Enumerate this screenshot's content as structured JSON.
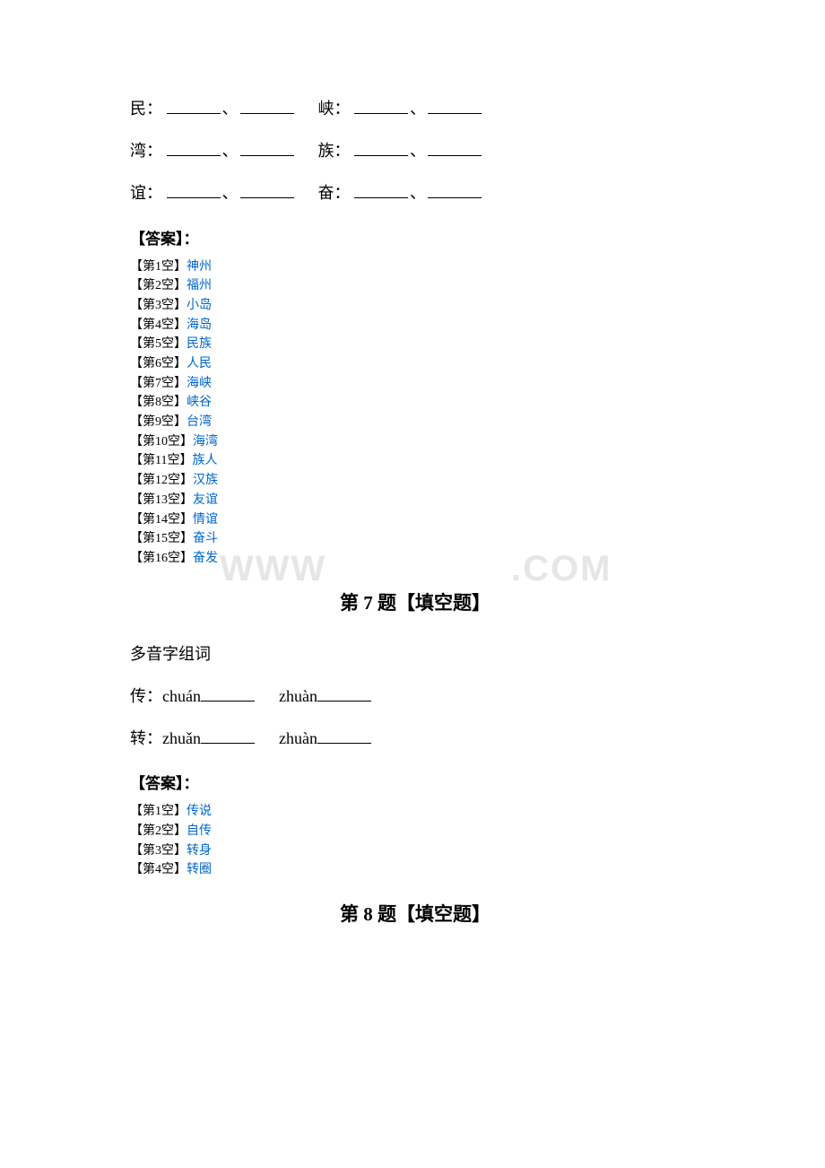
{
  "fill_exercise": {
    "rows": [
      {
        "char1": "民：",
        "char2": "峡："
      },
      {
        "char1": "湾：",
        "char2": "族："
      },
      {
        "char1": "谊：",
        "char2": "奋："
      }
    ]
  },
  "answer_header": "【答案】：",
  "answers1": [
    {
      "label": "【第1空】",
      "value": "神州"
    },
    {
      "label": "【第2空】",
      "value": "福州"
    },
    {
      "label": "【第3空】",
      "value": "小岛"
    },
    {
      "label": "【第4空】",
      "value": "海岛"
    },
    {
      "label": "【第5空】",
      "value": "民族"
    },
    {
      "label": "【第6空】",
      "value": "人民"
    },
    {
      "label": "【第7空】",
      "value": "海峡"
    },
    {
      "label": "【第8空】",
      "value": "峡谷"
    },
    {
      "label": "【第9空】",
      "value": "台湾"
    },
    {
      "label": "【第10空】",
      "value": "海湾"
    },
    {
      "label": "【第11空】",
      "value": "族人"
    },
    {
      "label": "【第12空】",
      "value": "汉族"
    },
    {
      "label": "【第13空】",
      "value": "友谊"
    },
    {
      "label": "【第14空】",
      "value": "情谊"
    },
    {
      "label": "【第15空】",
      "value": "奋斗"
    },
    {
      "label": "【第16空】",
      "value": "奋发"
    }
  ],
  "section7": {
    "marker": "",
    "title": "第 7 题【填空题】",
    "prompt": "多音字组词",
    "lines": [
      {
        "char": "传：",
        "p1": "chuán",
        "p2": "zhuàn"
      },
      {
        "char": "转：",
        "p1": "zhuǎn",
        "p2": "zhuàn"
      }
    ]
  },
  "answers2": [
    {
      "label": "【第1空】",
      "value": "传说"
    },
    {
      "label": "【第2空】",
      "value": "自传"
    },
    {
      "label": "【第3空】",
      "value": "转身"
    },
    {
      "label": "【第4空】",
      "value": "转圈"
    }
  ],
  "section8": {
    "marker": "",
    "title": "第 8 题【填空题】"
  },
  "watermark": {
    "left": "WWW",
    "right": ".COM"
  }
}
